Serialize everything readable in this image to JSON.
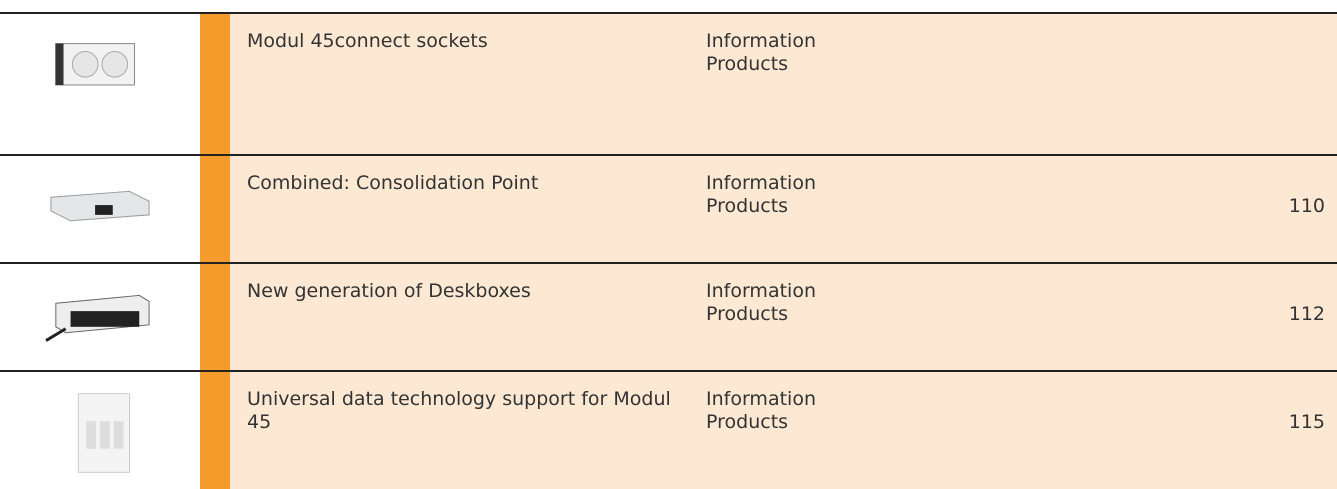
{
  "table": {
    "rows": [
      {
        "title": "Modul 45connect sockets",
        "info": [
          "Information",
          "Products"
        ]
      },
      {
        "title": "Combined: Consolidation Point",
        "info": [
          "Information",
          "Products"
        ],
        "page": "110"
      },
      {
        "title": "New generation of Deskboxes",
        "info": [
          "Information",
          "Products"
        ],
        "page": "112"
      },
      {
        "title": "Universal data technology support for Modul 45",
        "info": [
          "Information",
          "Products"
        ],
        "page": "115"
      }
    ]
  }
}
